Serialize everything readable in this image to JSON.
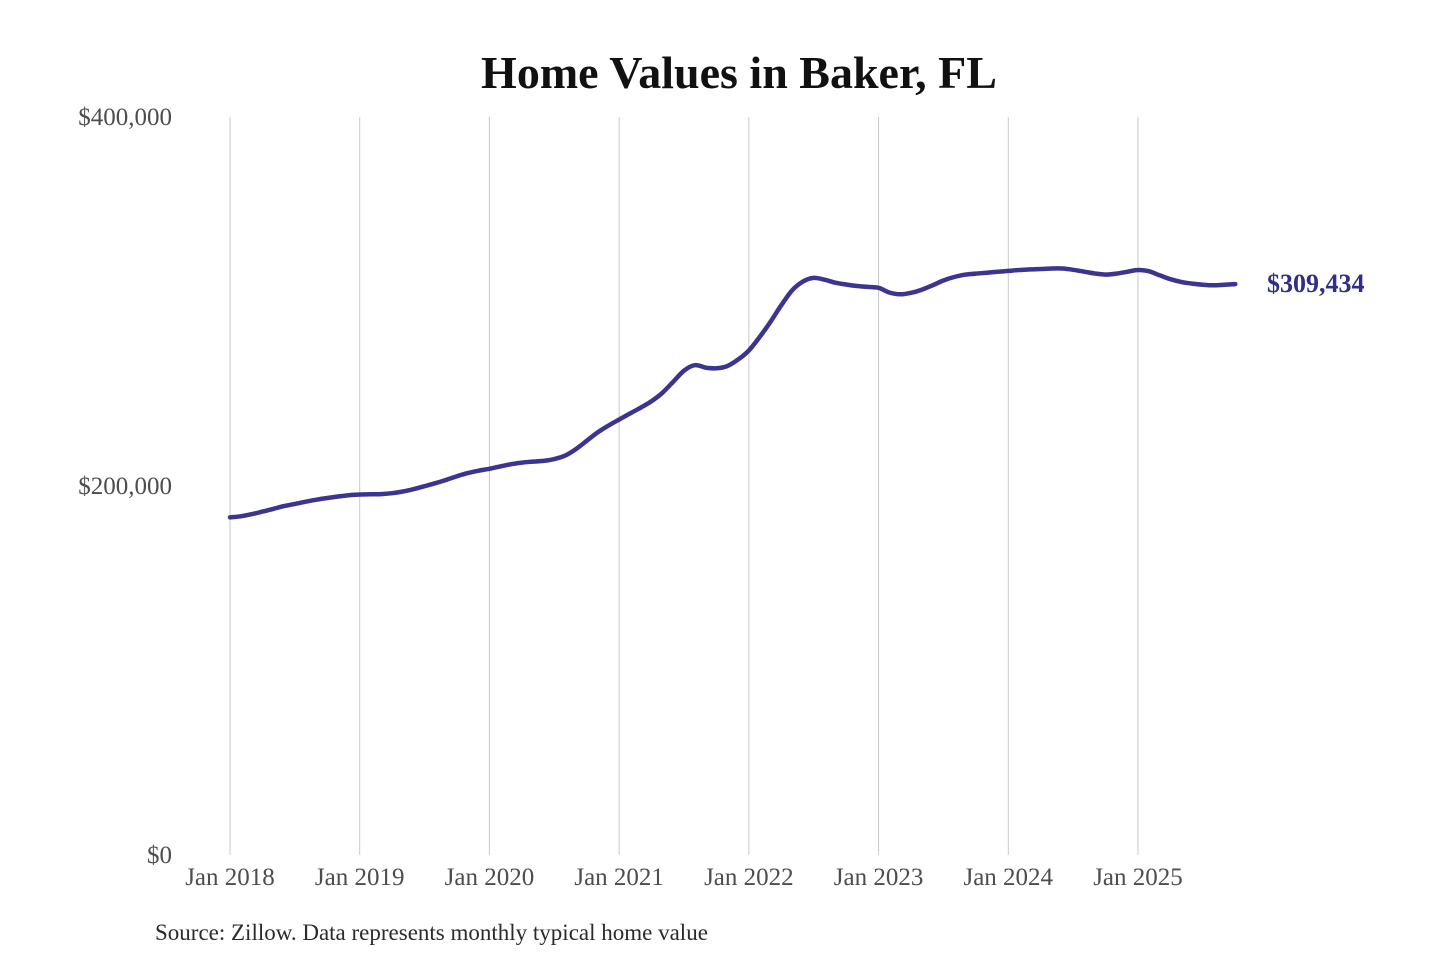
{
  "title": "Home Values in Baker, FL",
  "source_note": "Source: Zillow. Data represents monthly typical home value",
  "end_label": "$309,434",
  "colors": {
    "background": "#ffffff",
    "line": "#3b3590",
    "end_label": "#312e87",
    "grid": "#c9c9c9",
    "axis_text": "#4d4d4d",
    "title_text": "#111111",
    "source_text": "#2b2b2b"
  },
  "chart_data": {
    "type": "line",
    "title": "Home Values in Baker, FL",
    "series_name": "Monthly typical home value",
    "legend": "none",
    "grid": "vertical-only",
    "ylim": [
      0,
      400000
    ],
    "y_ticks": [
      {
        "value": 0,
        "label": "$0"
      },
      {
        "value": 200000,
        "label": "$200,000"
      },
      {
        "value": 400000,
        "label": "$400,000"
      }
    ],
    "x_tick_labels": [
      "Jan 2018",
      "Jan 2019",
      "Jan 2020",
      "Jan 2021",
      "Jan 2022",
      "Jan 2023",
      "Jan 2024",
      "Jan 2025"
    ],
    "x_tick_indices": [
      0,
      12,
      24,
      36,
      48,
      60,
      72,
      84
    ],
    "latest_value": 309434,
    "months": [
      "2018-01",
      "2018-02",
      "2018-03",
      "2018-04",
      "2018-05",
      "2018-06",
      "2018-07",
      "2018-08",
      "2018-09",
      "2018-10",
      "2018-11",
      "2018-12",
      "2019-01",
      "2019-02",
      "2019-03",
      "2019-04",
      "2019-05",
      "2019-06",
      "2019-07",
      "2019-08",
      "2019-09",
      "2019-10",
      "2019-11",
      "2019-12",
      "2020-01",
      "2020-02",
      "2020-03",
      "2020-04",
      "2020-05",
      "2020-06",
      "2020-07",
      "2020-08",
      "2020-09",
      "2020-10",
      "2020-11",
      "2020-12",
      "2021-01",
      "2021-02",
      "2021-03",
      "2021-04",
      "2021-05",
      "2021-06",
      "2021-07",
      "2021-08",
      "2021-09",
      "2021-10",
      "2021-11",
      "2021-12",
      "2022-01",
      "2022-02",
      "2022-03",
      "2022-04",
      "2022-05",
      "2022-06",
      "2022-07",
      "2022-08",
      "2022-09",
      "2022-10",
      "2022-11",
      "2022-12",
      "2023-01",
      "2023-02",
      "2023-03",
      "2023-04",
      "2023-05",
      "2023-06",
      "2023-07",
      "2023-08",
      "2023-09",
      "2023-10",
      "2023-11",
      "2023-12",
      "2024-01",
      "2024-02",
      "2024-03",
      "2024-04",
      "2024-05",
      "2024-06",
      "2024-07",
      "2024-08",
      "2024-09",
      "2024-10",
      "2024-11",
      "2024-12",
      "2025-01",
      "2025-02",
      "2025-03",
      "2025-04",
      "2025-05",
      "2025-06",
      "2025-07",
      "2025-08",
      "2025-09",
      "2025-10"
    ],
    "values": [
      183000,
      183600,
      184700,
      186100,
      187600,
      189100,
      190300,
      191500,
      192600,
      193500,
      194300,
      195000,
      195400,
      195500,
      195600,
      196100,
      197000,
      198300,
      199900,
      201500,
      203300,
      205300,
      207000,
      208300,
      209300,
      210600,
      211800,
      212700,
      213200,
      213600,
      214600,
      216500,
      220000,
      224500,
      229000,
      232700,
      236000,
      239300,
      242500,
      246000,
      250500,
      256500,
      262500,
      265500,
      264200,
      263800,
      265000,
      268500,
      273500,
      280800,
      289000,
      298000,
      306000,
      310800,
      312800,
      311800,
      310200,
      309200,
      308400,
      307900,
      307400,
      304900,
      303900,
      304700,
      306400,
      308800,
      311400,
      313300,
      314500,
      315100,
      315600,
      316100,
      316600,
      317100,
      317400,
      317600,
      317900,
      317900,
      317200,
      316200,
      315200,
      314600,
      315100,
      316100,
      317100,
      316400,
      314200,
      312100,
      310600,
      309700,
      309100,
      308800,
      309100,
      309434
    ]
  }
}
